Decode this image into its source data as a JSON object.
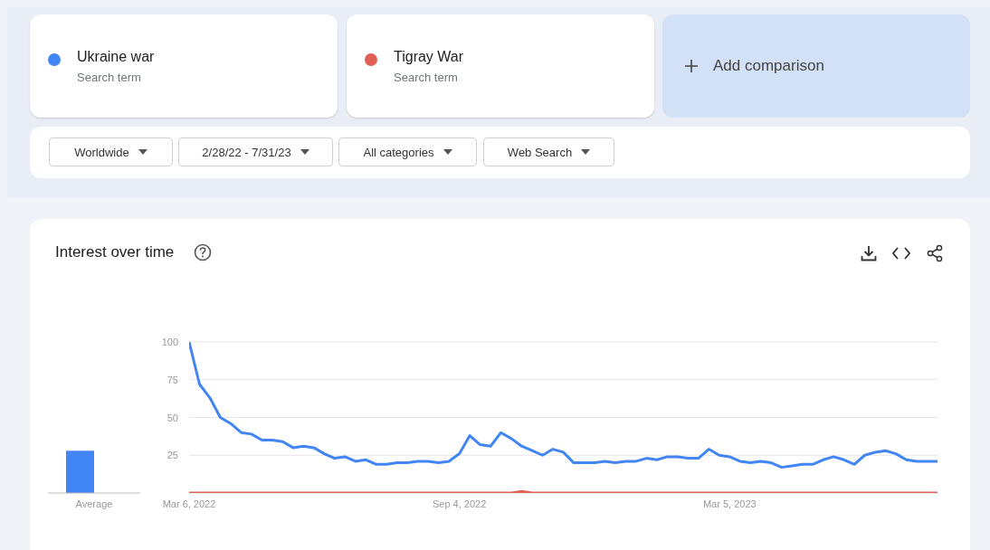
{
  "chart_data": [
    {
      "type": "line",
      "legend": "top",
      "grid": "y",
      "annotations": [
        "Search term",
        "Search term",
        "Add comparison",
        "Worldwide",
        "2/28/22 - 7/31/23",
        "All categories",
        "Web Search"
      ],
      "x": [
        "2022-03-06",
        "2022-03-13",
        "2022-03-20",
        "2022-03-27",
        "2022-04-03",
        "2022-04-10",
        "2022-04-17",
        "2022-04-24",
        "2022-05-01",
        "2022-05-08",
        "2022-05-15",
        "2022-05-22",
        "2022-05-29",
        "2022-06-05",
        "2022-06-12",
        "2022-06-19",
        "2022-06-26",
        "2022-07-03",
        "2022-07-10",
        "2022-07-17",
        "2022-07-24",
        "2022-07-31",
        "2022-08-07",
        "2022-08-14",
        "2022-08-21",
        "2022-08-28",
        "2022-09-04",
        "2022-09-11",
        "2022-09-18",
        "2022-09-25",
        "2022-10-02",
        "2022-10-09",
        "2022-10-16",
        "2022-10-23",
        "2022-10-30",
        "2022-11-06",
        "2022-11-13",
        "2022-11-20",
        "2022-11-27",
        "2022-12-04",
        "2022-12-11",
        "2022-12-18",
        "2022-12-25",
        "2023-01-01",
        "2023-01-08",
        "2023-01-15",
        "2023-01-22",
        "2023-01-29",
        "2023-02-05",
        "2023-02-12",
        "2023-02-19",
        "2023-02-26",
        "2023-03-05",
        "2023-03-12",
        "2023-03-19",
        "2023-03-26",
        "2023-04-02",
        "2023-04-09",
        "2023-04-16",
        "2023-04-23",
        "2023-04-30",
        "2023-05-07",
        "2023-05-14",
        "2023-05-21",
        "2023-05-28",
        "2023-06-04",
        "2023-06-11",
        "2023-06-18",
        "2023-06-25",
        "2023-07-02",
        "2023-07-09",
        "2023-07-16",
        "2023-07-23"
      ],
      "xlim": [
        "2022-03-06",
        "2023-07-23"
      ],
      "xticks": [
        {
          "value": "2022-03-06",
          "label": "Mar 6, 2022"
        },
        {
          "value": "2022-09-04",
          "label": "Sep 4, 2022"
        },
        {
          "value": "2023-03-05",
          "label": "Mar 5, 2023"
        }
      ],
      "ylim": [
        0,
        100
      ],
      "yticks": [
        {
          "value": 0,
          "label": null
        },
        25,
        50,
        75,
        100
      ],
      "series": [
        {
          "name": "Ukraine war",
          "color": "#4285f4",
          "values": [
            100,
            72,
            63,
            50,
            46,
            40,
            39,
            35,
            35,
            34,
            30,
            31,
            30,
            26,
            23,
            24,
            21,
            22,
            19,
            19,
            20,
            20,
            21,
            21,
            20,
            21,
            26,
            38,
            32,
            31,
            40,
            36,
            31,
            28,
            25,
            29,
            27,
            20,
            20,
            20,
            21,
            20,
            21,
            21,
            23,
            22,
            24,
            24,
            23,
            23,
            29,
            25,
            24,
            21,
            20,
            21,
            20,
            17,
            18,
            19,
            19,
            22,
            24,
            22,
            19,
            25,
            27,
            28,
            26,
            22,
            21,
            21,
            21
          ]
        },
        {
          "name": "Tigray War",
          "color": "#e06055",
          "values": [
            0,
            0,
            0,
            0,
            0,
            0,
            0,
            0,
            0,
            0,
            0,
            0,
            0,
            0,
            0,
            0,
            0,
            0,
            0,
            0,
            0,
            0,
            0,
            0,
            0,
            0,
            0,
            0,
            0,
            0,
            0,
            0,
            1,
            0,
            0,
            0,
            0,
            0,
            0,
            0,
            0,
            0,
            0,
            0,
            0,
            0,
            0,
            0,
            0,
            0,
            0,
            0,
            0,
            0,
            0,
            0,
            0,
            0,
            0,
            0,
            0,
            0,
            0,
            0,
            0,
            0,
            0,
            0,
            0,
            0,
            0,
            0,
            0
          ]
        }
      ]
    },
    {
      "type": "bar",
      "title": "Interest over time",
      "categories": [
        "Average"
      ],
      "ylim": [
        0,
        100
      ],
      "tick_labels": "x",
      "series": [
        {
          "color": "#4285f4",
          "values": [
            28
          ]
        },
        {
          "color": "#e06055",
          "values": [
            0
          ]
        }
      ]
    }
  ]
}
